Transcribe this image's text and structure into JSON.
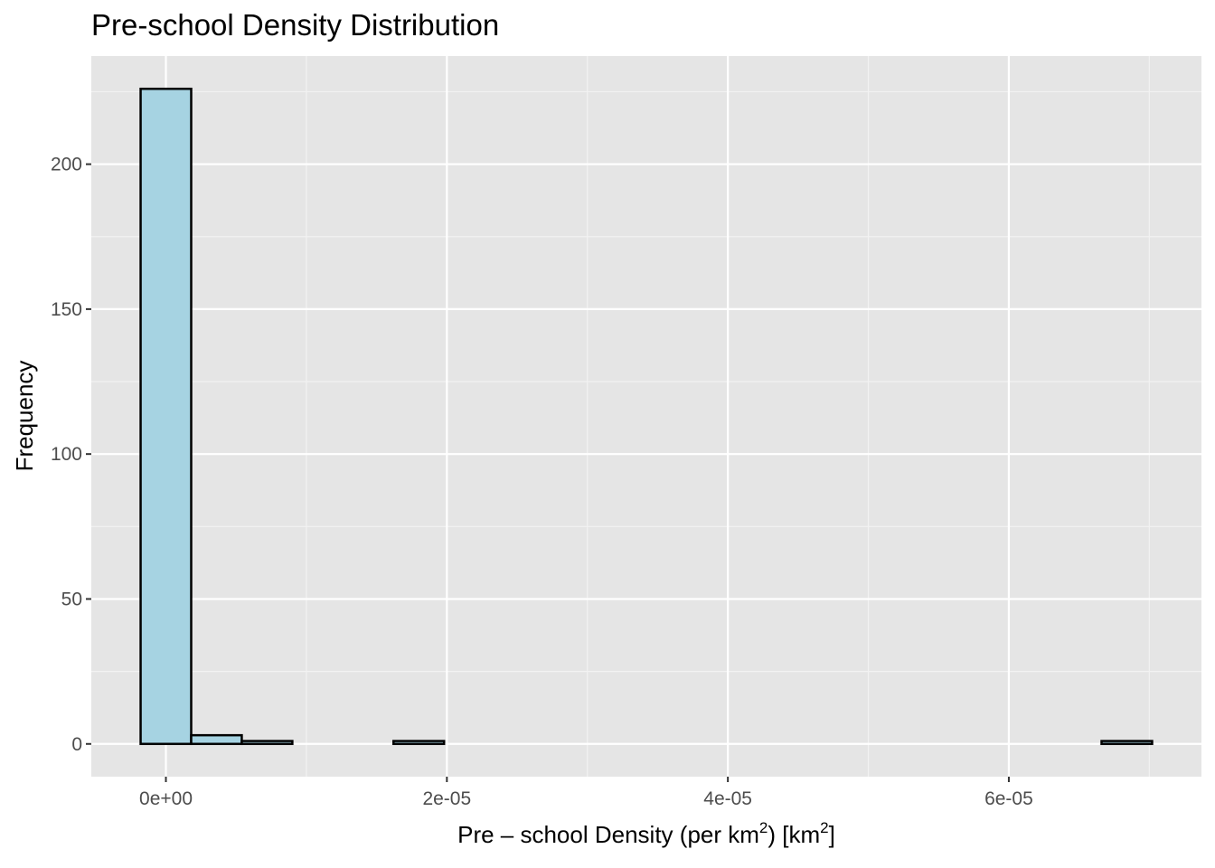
{
  "chart_data": {
    "type": "bar",
    "title": "Pre-school Density Distribution",
    "xlabel": {
      "prefix": "Pre – school Density ",
      "paren_text": "per km",
      "sup1": "2",
      "bracket_text": "km",
      "sup2": "2"
    },
    "ylabel": "Frequency",
    "bin_width": 3.6e-06,
    "bins": [
      {
        "x_start": -1.8e-06,
        "x_end": 1.8e-06,
        "count": 226
      },
      {
        "x_start": 1.8e-06,
        "x_end": 5.4e-06,
        "count": 3
      },
      {
        "x_start": 5.4e-06,
        "x_end": 9e-06,
        "count": 1
      },
      {
        "x_start": 9e-06,
        "x_end": 1.26e-05,
        "count": 0
      },
      {
        "x_start": 1.26e-05,
        "x_end": 1.62e-05,
        "count": 0
      },
      {
        "x_start": 1.62e-05,
        "x_end": 1.98e-05,
        "count": 1
      },
      {
        "x_start": 1.98e-05,
        "x_end": 2.34e-05,
        "count": 0
      },
      {
        "x_start": 2.34e-05,
        "x_end": 2.7e-05,
        "count": 0
      },
      {
        "x_start": 2.7e-05,
        "x_end": 3.06e-05,
        "count": 0
      },
      {
        "x_start": 3.06e-05,
        "x_end": 3.42e-05,
        "count": 0
      },
      {
        "x_start": 3.42e-05,
        "x_end": 3.78e-05,
        "count": 0
      },
      {
        "x_start": 3.78e-05,
        "x_end": 4.14e-05,
        "count": 0
      },
      {
        "x_start": 4.14e-05,
        "x_end": 4.5e-05,
        "count": 0
      },
      {
        "x_start": 4.5e-05,
        "x_end": 4.86e-05,
        "count": 0
      },
      {
        "x_start": 4.86e-05,
        "x_end": 5.22e-05,
        "count": 0
      },
      {
        "x_start": 5.22e-05,
        "x_end": 5.58e-05,
        "count": 0
      },
      {
        "x_start": 5.58e-05,
        "x_end": 5.94e-05,
        "count": 0
      },
      {
        "x_start": 5.94e-05,
        "x_end": 6.3e-05,
        "count": 0
      },
      {
        "x_start": 6.3e-05,
        "x_end": 6.66e-05,
        "count": 0
      },
      {
        "x_start": 6.66e-05,
        "x_end": 7.02e-05,
        "count": 1
      }
    ],
    "x_ticks": [
      {
        "value": 0,
        "label": "0e+00"
      },
      {
        "value": 2e-05,
        "label": "2e-05"
      },
      {
        "value": 4e-05,
        "label": "4e-05"
      },
      {
        "value": 6e-05,
        "label": "6e-05"
      }
    ],
    "y_ticks": [
      {
        "value": 0,
        "label": "0"
      },
      {
        "value": 50,
        "label": "50"
      },
      {
        "value": 100,
        "label": "100"
      },
      {
        "value": 150,
        "label": "150"
      },
      {
        "value": 200,
        "label": "200"
      }
    ],
    "xlim": [
      -5.31e-06,
      7.371e-05
    ],
    "ylim": [
      -11.3,
      237.3
    ],
    "grid": true,
    "colors": {
      "panel_background": "#e5e5e5",
      "grid_major": "#ffffff",
      "grid_minor": "#f2f2f2",
      "bar_fill": "#a6d3e2",
      "bar_outline": "#000000",
      "tick_text": "#4d4d4d"
    }
  }
}
